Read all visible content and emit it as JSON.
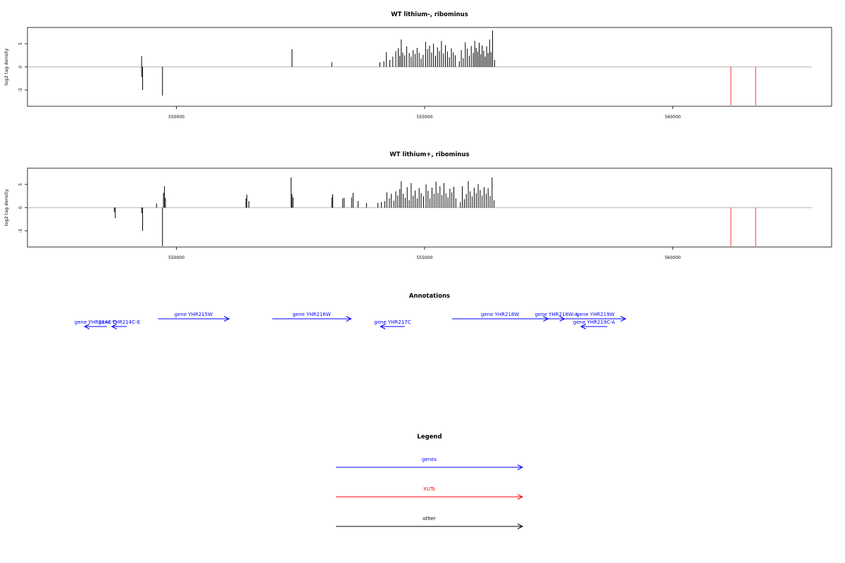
{
  "colors": {
    "genes": "#0000ff",
    "xuts": "#ff0000",
    "other": "#000000",
    "baseline": "#b0b0b0",
    "red_bars": "#ff6b6b"
  },
  "chart_data": [
    {
      "type": "bar",
      "title": "WT lithium-, ribominus",
      "ylabel": "log2 tag density",
      "xlim": [
        547000,
        563200
      ],
      "ylim": [
        -8.5,
        8.5
      ],
      "x_ticks": [
        550000,
        555000,
        560000
      ],
      "x_tick_labels": [
        "550000",
        "555000",
        "560000"
      ],
      "y_ticks": [
        5,
        0,
        -5
      ],
      "y_tick_labels": [
        "5",
        "0",
        "-5"
      ],
      "baseline": {
        "from": 547000,
        "to": 562800
      },
      "bars": [
        {
          "x": 549300,
          "y": 2.3
        },
        {
          "x": 549300,
          "y": -2.2
        },
        {
          "x": 549320,
          "y": -5.0
        },
        {
          "x": 549720,
          "y": -6.2
        },
        {
          "x": 552330,
          "y": 3.8
        },
        {
          "x": 553130,
          "y": 1.0
        },
        {
          "x": 554100,
          "y": 1.0
        },
        {
          "x": 554180,
          "y": 1.2
        },
        {
          "x": 554230,
          "y": 3.2
        },
        {
          "x": 554300,
          "y": 1.5
        },
        {
          "x": 554360,
          "y": 2.2
        },
        {
          "x": 554420,
          "y": 3.4
        },
        {
          "x": 554470,
          "y": 4.0
        },
        {
          "x": 554500,
          "y": 2.4
        },
        {
          "x": 554530,
          "y": 5.9
        },
        {
          "x": 554560,
          "y": 3.1
        },
        {
          "x": 554600,
          "y": 2.5
        },
        {
          "x": 554640,
          "y": 4.4
        },
        {
          "x": 554690,
          "y": 3.0
        },
        {
          "x": 554730,
          "y": 2.2
        },
        {
          "x": 554770,
          "y": 3.6
        },
        {
          "x": 554810,
          "y": 2.8
        },
        {
          "x": 554850,
          "y": 4.1
        },
        {
          "x": 554890,
          "y": 3.0
        },
        {
          "x": 554930,
          "y": 1.8
        },
        {
          "x": 554970,
          "y": 2.6
        },
        {
          "x": 555020,
          "y": 5.4
        },
        {
          "x": 555060,
          "y": 3.8
        },
        {
          "x": 555100,
          "y": 4.6
        },
        {
          "x": 555140,
          "y": 3.1
        },
        {
          "x": 555180,
          "y": 5.0
        },
        {
          "x": 555220,
          "y": 2.4
        },
        {
          "x": 555260,
          "y": 4.2
        },
        {
          "x": 555300,
          "y": 3.4
        },
        {
          "x": 555340,
          "y": 5.6
        },
        {
          "x": 555380,
          "y": 2.9
        },
        {
          "x": 555420,
          "y": 4.7
        },
        {
          "x": 555460,
          "y": 3.3
        },
        {
          "x": 555500,
          "y": 2.1
        },
        {
          "x": 555540,
          "y": 4.0
        },
        {
          "x": 555580,
          "y": 3.1
        },
        {
          "x": 555620,
          "y": 2.5
        },
        {
          "x": 555700,
          "y": 1.2
        },
        {
          "x": 555740,
          "y": 3.6
        },
        {
          "x": 555780,
          "y": 1.9
        },
        {
          "x": 555820,
          "y": 5.3
        },
        {
          "x": 555860,
          "y": 3.9
        },
        {
          "x": 555900,
          "y": 2.4
        },
        {
          "x": 555940,
          "y": 4.5
        },
        {
          "x": 555980,
          "y": 3.0
        },
        {
          "x": 556010,
          "y": 5.6
        },
        {
          "x": 556040,
          "y": 4.1
        },
        {
          "x": 556070,
          "y": 3.3
        },
        {
          "x": 556100,
          "y": 5.2
        },
        {
          "x": 556130,
          "y": 2.7
        },
        {
          "x": 556160,
          "y": 4.6
        },
        {
          "x": 556190,
          "y": 3.5
        },
        {
          "x": 556220,
          "y": 2.2
        },
        {
          "x": 556250,
          "y": 4.4
        },
        {
          "x": 556280,
          "y": 3.0
        },
        {
          "x": 556310,
          "y": 5.9
        },
        {
          "x": 556340,
          "y": 3.2
        },
        {
          "x": 556370,
          "y": 7.8
        },
        {
          "x": 556410,
          "y": 1.5
        }
      ],
      "red_bars": [
        {
          "x": 561170,
          "y": -8.3
        },
        {
          "x": 561670,
          "y": -8.3
        }
      ]
    },
    {
      "type": "bar",
      "title": "WT lithium+, ribominus",
      "ylabel": "log2 tag density",
      "xlim": [
        547000,
        563200
      ],
      "ylim": [
        -8.5,
        8.5
      ],
      "x_ticks": [
        550000,
        555000,
        560000
      ],
      "x_tick_labels": [
        "550000",
        "555000",
        "560000"
      ],
      "y_ticks": [
        5,
        0,
        -5
      ],
      "y_tick_labels": [
        "5",
        "0",
        "-5"
      ],
      "baseline": {
        "from": 547000,
        "to": 562800
      },
      "bars": [
        {
          "x": 548750,
          "y": -1.0
        },
        {
          "x": 548770,
          "y": -2.3
        },
        {
          "x": 549300,
          "y": -1.2
        },
        {
          "x": 549320,
          "y": -5.0
        },
        {
          "x": 549600,
          "y": 0.9
        },
        {
          "x": 549720,
          "y": -8.3
        },
        {
          "x": 549740,
          "y": 3.2
        },
        {
          "x": 549760,
          "y": 4.6
        },
        {
          "x": 549780,
          "y": 2.1
        },
        {
          "x": 551400,
          "y": 2.0
        },
        {
          "x": 551420,
          "y": 2.8
        },
        {
          "x": 551460,
          "y": 1.4
        },
        {
          "x": 552310,
          "y": 6.5
        },
        {
          "x": 552330,
          "y": 2.9
        },
        {
          "x": 552350,
          "y": 2.2
        },
        {
          "x": 553130,
          "y": 2.2
        },
        {
          "x": 553150,
          "y": 2.9
        },
        {
          "x": 553350,
          "y": 2.0
        },
        {
          "x": 553380,
          "y": 2.1
        },
        {
          "x": 553530,
          "y": 2.2
        },
        {
          "x": 553560,
          "y": 3.2
        },
        {
          "x": 553660,
          "y": 1.4
        },
        {
          "x": 553830,
          "y": 1.0
        },
        {
          "x": 554060,
          "y": 1.0
        },
        {
          "x": 554130,
          "y": 1.2
        },
        {
          "x": 554200,
          "y": 1.4
        },
        {
          "x": 554240,
          "y": 3.3
        },
        {
          "x": 554290,
          "y": 2.0
        },
        {
          "x": 554330,
          "y": 3.0
        },
        {
          "x": 554380,
          "y": 1.5
        },
        {
          "x": 554420,
          "y": 3.5
        },
        {
          "x": 554460,
          "y": 2.6
        },
        {
          "x": 554500,
          "y": 4.0
        },
        {
          "x": 554530,
          "y": 5.7
        },
        {
          "x": 554570,
          "y": 3.0
        },
        {
          "x": 554610,
          "y": 2.1
        },
        {
          "x": 554650,
          "y": 4.4
        },
        {
          "x": 554690,
          "y": 1.6
        },
        {
          "x": 554730,
          "y": 5.3
        },
        {
          "x": 554770,
          "y": 2.6
        },
        {
          "x": 554810,
          "y": 3.7
        },
        {
          "x": 554850,
          "y": 2.0
        },
        {
          "x": 554890,
          "y": 4.2
        },
        {
          "x": 554930,
          "y": 3.1
        },
        {
          "x": 554980,
          "y": 2.4
        },
        {
          "x": 555030,
          "y": 5.0
        },
        {
          "x": 555070,
          "y": 3.6
        },
        {
          "x": 555110,
          "y": 2.0
        },
        {
          "x": 555150,
          "y": 4.3
        },
        {
          "x": 555190,
          "y": 3.0
        },
        {
          "x": 555230,
          "y": 5.6
        },
        {
          "x": 555270,
          "y": 3.2
        },
        {
          "x": 555310,
          "y": 4.6
        },
        {
          "x": 555350,
          "y": 2.7
        },
        {
          "x": 555390,
          "y": 5.3
        },
        {
          "x": 555430,
          "y": 3.1
        },
        {
          "x": 555470,
          "y": 2.2
        },
        {
          "x": 555510,
          "y": 4.1
        },
        {
          "x": 555550,
          "y": 3.3
        },
        {
          "x": 555590,
          "y": 4.5
        },
        {
          "x": 555630,
          "y": 2.0
        },
        {
          "x": 555720,
          "y": 1.2
        },
        {
          "x": 555760,
          "y": 4.6
        },
        {
          "x": 555800,
          "y": 1.8
        },
        {
          "x": 555840,
          "y": 2.9
        },
        {
          "x": 555880,
          "y": 5.7
        },
        {
          "x": 555920,
          "y": 3.5
        },
        {
          "x": 555960,
          "y": 2.4
        },
        {
          "x": 556000,
          "y": 4.3
        },
        {
          "x": 556040,
          "y": 3.1
        },
        {
          "x": 556080,
          "y": 5.1
        },
        {
          "x": 556120,
          "y": 3.8
        },
        {
          "x": 556160,
          "y": 2.6
        },
        {
          "x": 556200,
          "y": 4.4
        },
        {
          "x": 556240,
          "y": 3.0
        },
        {
          "x": 556280,
          "y": 4.2
        },
        {
          "x": 556320,
          "y": 2.5
        },
        {
          "x": 556360,
          "y": 6.5
        },
        {
          "x": 556400,
          "y": 1.6
        }
      ],
      "red_bars": [
        {
          "x": 561170,
          "y": -8.3
        },
        {
          "x": 561670,
          "y": -8.3
        }
      ]
    }
  ],
  "annotations": {
    "title": "Annotations",
    "xlim": [
      547000,
      563200
    ],
    "items": [
      {
        "label": "gene YHR214C-D",
        "strand": "-",
        "start": 548150,
        "end": 548600,
        "row": 1
      },
      {
        "label": "gene YHR214C-E",
        "strand": "-",
        "start": 548700,
        "end": 549000,
        "row": 1
      },
      {
        "label": "gene YHR215W",
        "strand": "+",
        "start": 549630,
        "end": 551060,
        "row": 0
      },
      {
        "label": "gene YHR216W",
        "strand": "+",
        "start": 551930,
        "end": 553520,
        "row": 0
      },
      {
        "label": "gene YHR217C",
        "strand": "-",
        "start": 554110,
        "end": 554600,
        "row": 1
      },
      {
        "label": "gene YHR218W",
        "strand": "+",
        "start": 555550,
        "end": 557490,
        "row": 0
      },
      {
        "label": "gene YHR218W-A",
        "strand": "+",
        "start": 557490,
        "end": 557820,
        "row": 0
      },
      {
        "label": "gene YHR219W",
        "strand": "+",
        "start": 557830,
        "end": 559050,
        "row": 0
      },
      {
        "label": "gene YHR219C-A",
        "strand": "-",
        "start": 558150,
        "end": 558680,
        "row": 1
      }
    ]
  },
  "legend": {
    "title": "Legend",
    "items": [
      {
        "label": "genes",
        "color": "#0000ff"
      },
      {
        "label": "XUTs",
        "color": "#ff0000"
      },
      {
        "label": "other",
        "color": "#000000"
      }
    ]
  }
}
